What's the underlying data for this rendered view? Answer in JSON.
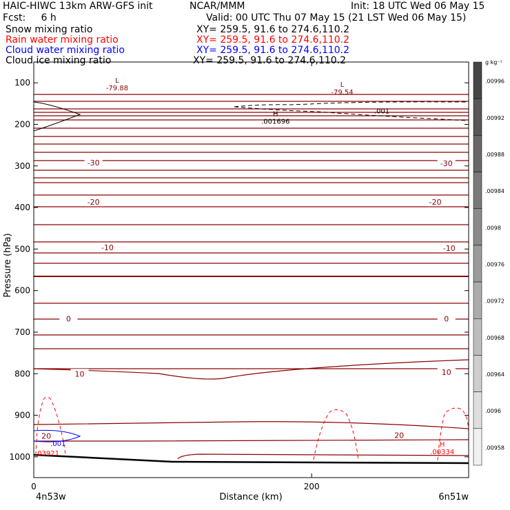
{
  "header": {
    "line1_left": "HAIC-HIWC 13km ARW-GFS init",
    "line1_center": "NCAR/MMM",
    "line1_right": "Init: 18 UTC Wed 06 May 15",
    "line2_left": "Fcst:     6 h",
    "line2_right": "Valid: 00 UTC Thu 07 May 15 (21 LST Wed 06 May 15)",
    "fields": [
      {
        "name": "Snow mixing ratio",
        "xy": "XY= 259.5, 91.6 to 274.6,110.2",
        "color": "#000000"
      },
      {
        "name": "Rain water mixing ratio",
        "xy": "XY= 259.5, 91.6 to 274.6,110.2",
        "color": "#ff0000"
      },
      {
        "name": "Cloud water mixing ratio",
        "xy": "XY= 259.5, 91.6 to 274.6,110.2",
        "color": "#0000ff"
      },
      {
        "name": "Cloud ice mixing ratio",
        "xy": "XY= 259.5, 91.6 to 274.6,110.2",
        "color": "#000000"
      }
    ]
  },
  "chart_data": {
    "type": "contour",
    "ylabel": "Pressure (hPa)",
    "xlabel": "Distance (km)",
    "x_start_label": "4n53w",
    "x_end_label": "6n51w",
    "x_ticks": [
      0,
      200
    ],
    "xlim": [
      0,
      313
    ],
    "y_ticks": [
      100,
      200,
      300,
      400,
      500,
      600,
      700,
      800,
      900,
      1000
    ],
    "ylim": [
      50,
      1050
    ],
    "temperature_isotherms_C": [
      -30,
      -20,
      -10,
      0,
      10,
      20
    ],
    "temperature_labels": [
      {
        "text": "-30",
        "x": 43,
        "p": 292
      },
      {
        "text": "-30",
        "x": 297,
        "p": 294
      },
      {
        "text": "-20",
        "x": 43,
        "p": 387
      },
      {
        "text": "-20",
        "x": 289,
        "p": 387
      },
      {
        "text": "-10",
        "x": 53,
        "p": 496
      },
      {
        "text": "-10",
        "x": 299,
        "p": 498
      },
      {
        "text": "0",
        "x": 25,
        "p": 668
      },
      {
        "text": "0",
        "x": 297,
        "p": 668
      },
      {
        "text": "10",
        "x": 33,
        "p": 800
      },
      {
        "text": "10",
        "x": 297,
        "p": 796
      },
      {
        "text": "20",
        "x": 9,
        "p": 950
      },
      {
        "text": "20",
        "x": 263,
        "p": 948
      }
    ],
    "extrema_labels": [
      {
        "letter": "L",
        "value": "-79.88",
        "x": 60,
        "p": 100,
        "color": "#8b0000"
      },
      {
        "letter": "L",
        "value": "-79.54",
        "x": 222,
        "p": 110,
        "color": "#8b0000"
      },
      {
        "letter": "H",
        "value": ".001696",
        "x": 174,
        "p": 180,
        "color": "#000000"
      },
      {
        "letter": "H",
        "value": ".00334",
        "x": 294,
        "p": 975,
        "color": "#ff0000"
      }
    ],
    "contour_labels": [
      {
        "text": ".001",
        "x": 245,
        "p": 167,
        "color": "#000000"
      },
      {
        "text": ".001",
        "x": 12,
        "p": 967,
        "color": "#0000ff"
      },
      {
        "text": ".03921",
        "x": 1,
        "p": 990,
        "color": "#ff0000"
      }
    ],
    "colorbar": {
      "unit": "g kg⁻¹",
      "labels": [
        ".00996",
        ".00992",
        ".00988",
        ".00984",
        ".0098",
        ".00976",
        ".00972",
        ".00968",
        ".00964",
        ".0096",
        ".00958"
      ]
    },
    "colors": {
      "isotherm": "#8b0000",
      "rain": "#ff0000",
      "cloud_water": "#0000ff",
      "ice_snow": "#000000"
    }
  }
}
